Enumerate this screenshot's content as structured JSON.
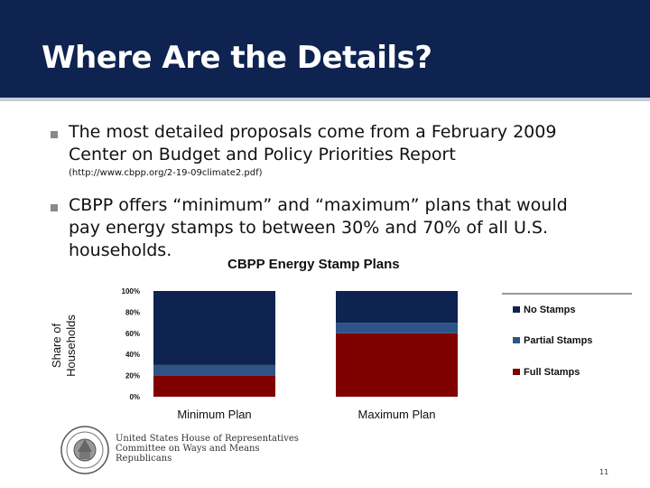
{
  "slide": {
    "title": "Where Are the Details?",
    "bullets": [
      "The most detailed proposals come from a February 2009 Center on Budget and Policy Priorities Report",
      "CBPP offers “minimum” and “maximum” plans that would pay energy stamps to between 30% and 70% of all U.S. households."
    ],
    "source": "(http://www.cbpp.org/2-19-09climate2.pdf)",
    "footer": {
      "line1": "United States House of Representatives",
      "line2": "Committee on Ways and Means",
      "line3": "Republicans"
    },
    "page_number": "11"
  },
  "chart_data": {
    "type": "bar",
    "stacked": true,
    "title": "CBPP Energy Stamp Plans",
    "ylabel": "Share of Households",
    "xlabel": "",
    "categories": [
      "Minimum Plan",
      "Maximum Plan"
    ],
    "ylim": [
      0,
      100
    ],
    "yticks": [
      "0%",
      "20%",
      "40%",
      "60%",
      "80%",
      "100%"
    ],
    "series": [
      {
        "name": "Full Stamps",
        "values": [
          20,
          60
        ],
        "color": "#800000"
      },
      {
        "name": "Partial Stamps",
        "values": [
          10,
          10
        ],
        "color": "#2e5487"
      },
      {
        "name": "No Stamps",
        "values": [
          70,
          30
        ],
        "color": "#0e2350"
      }
    ],
    "legend_order": [
      "No Stamps",
      "Partial Stamps",
      "Full Stamps"
    ],
    "legend": "right",
    "grid": false
  }
}
